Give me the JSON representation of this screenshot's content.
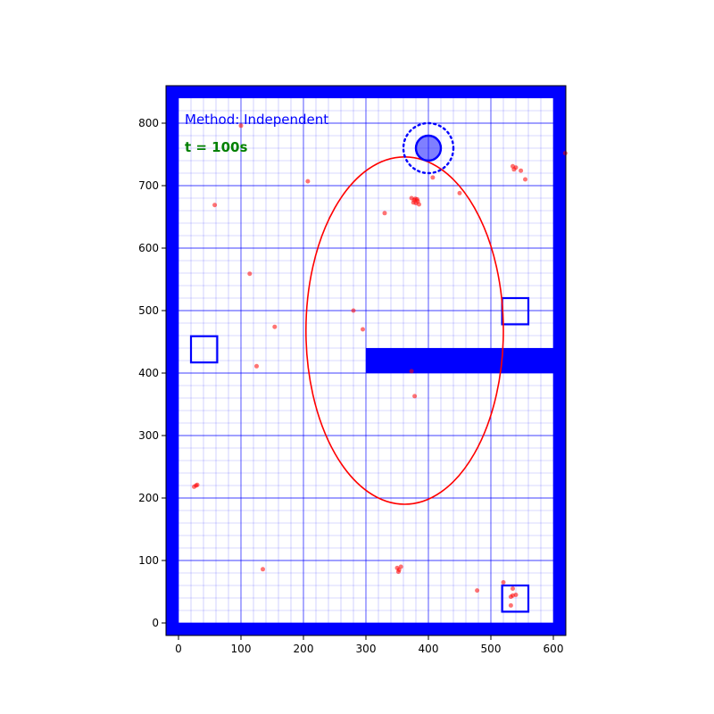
{
  "chart_data": {
    "type": "scatter",
    "title": "",
    "xlabel": "",
    "ylabel": "",
    "xlim": [
      -20,
      620
    ],
    "ylim": [
      -20,
      860
    ],
    "x_ticks": [
      0,
      100,
      200,
      300,
      400,
      500,
      600
    ],
    "y_ticks": [
      0,
      100,
      200,
      300,
      400,
      500,
      600,
      700,
      800
    ],
    "major_grid_step": 100,
    "minor_grid_step": 20,
    "annotations": {
      "method_text": "Method: Independent",
      "time_text": "t = 100s"
    },
    "colors": {
      "walls": "#0000ff",
      "grid": "#0000ff",
      "particles": "#ff0000",
      "ellipse": "#ff0000",
      "robot": "#0000ff",
      "method_text": "#0000ff",
      "time_text": "#008000"
    },
    "walls": [
      {
        "name": "bottom",
        "x0": -20,
        "y0": -20,
        "x1": 620,
        "y1": 0
      },
      {
        "name": "top",
        "x0": -20,
        "y0": 840,
        "x1": 620,
        "y1": 860
      },
      {
        "name": "left",
        "x0": -20,
        "y0": -20,
        "x1": 0,
        "y1": 860
      },
      {
        "name": "right",
        "x0": 600,
        "y0": -20,
        "x1": 620,
        "y1": 860
      },
      {
        "name": "inner",
        "x0": 300,
        "y0": 400,
        "x1": 600,
        "y1": 440
      }
    ],
    "landmarks": [
      {
        "x": 20,
        "y": 417,
        "w": 42,
        "h": 42
      },
      {
        "x": 518,
        "y": 478,
        "w": 42,
        "h": 42
      },
      {
        "x": 518,
        "y": 18,
        "w": 42,
        "h": 42
      }
    ],
    "robot": {
      "x": 400,
      "y": 760,
      "r": 20,
      "sensor_range": 40
    },
    "ellipse": {
      "cx": 362,
      "cy": 468,
      "rx": 158,
      "ry": 278
    },
    "particles": [
      {
        "x": 100,
        "y": 796
      },
      {
        "x": 207,
        "y": 707
      },
      {
        "x": 58,
        "y": 669
      },
      {
        "x": 114,
        "y": 559
      },
      {
        "x": 154,
        "y": 474
      },
      {
        "x": 125,
        "y": 411
      },
      {
        "x": 280,
        "y": 500
      },
      {
        "x": 295,
        "y": 470
      },
      {
        "x": 330,
        "y": 656
      },
      {
        "x": 373,
        "y": 680
      },
      {
        "x": 377,
        "y": 677
      },
      {
        "x": 380,
        "y": 672
      },
      {
        "x": 383,
        "y": 675
      },
      {
        "x": 379,
        "y": 679
      },
      {
        "x": 385,
        "y": 670
      },
      {
        "x": 376,
        "y": 673
      },
      {
        "x": 382,
        "y": 678
      },
      {
        "x": 407,
        "y": 713
      },
      {
        "x": 450,
        "y": 688
      },
      {
        "x": 535,
        "y": 731
      },
      {
        "x": 537,
        "y": 726
      },
      {
        "x": 540,
        "y": 729
      },
      {
        "x": 548,
        "y": 724
      },
      {
        "x": 555,
        "y": 710
      },
      {
        "x": 619,
        "y": 752
      },
      {
        "x": 373,
        "y": 403
      },
      {
        "x": 378,
        "y": 363
      },
      {
        "x": 25,
        "y": 218
      },
      {
        "x": 28,
        "y": 220
      },
      {
        "x": 30,
        "y": 221
      },
      {
        "x": 135,
        "y": 86
      },
      {
        "x": 350,
        "y": 88
      },
      {
        "x": 352,
        "y": 82
      },
      {
        "x": 353,
        "y": 85
      },
      {
        "x": 356,
        "y": 90
      },
      {
        "x": 478,
        "y": 52
      },
      {
        "x": 520,
        "y": 65
      },
      {
        "x": 532,
        "y": 42
      },
      {
        "x": 535,
        "y": 55
      },
      {
        "x": 535,
        "y": 44
      },
      {
        "x": 540,
        "y": 45
      },
      {
        "x": 532,
        "y": 28
      }
    ]
  }
}
